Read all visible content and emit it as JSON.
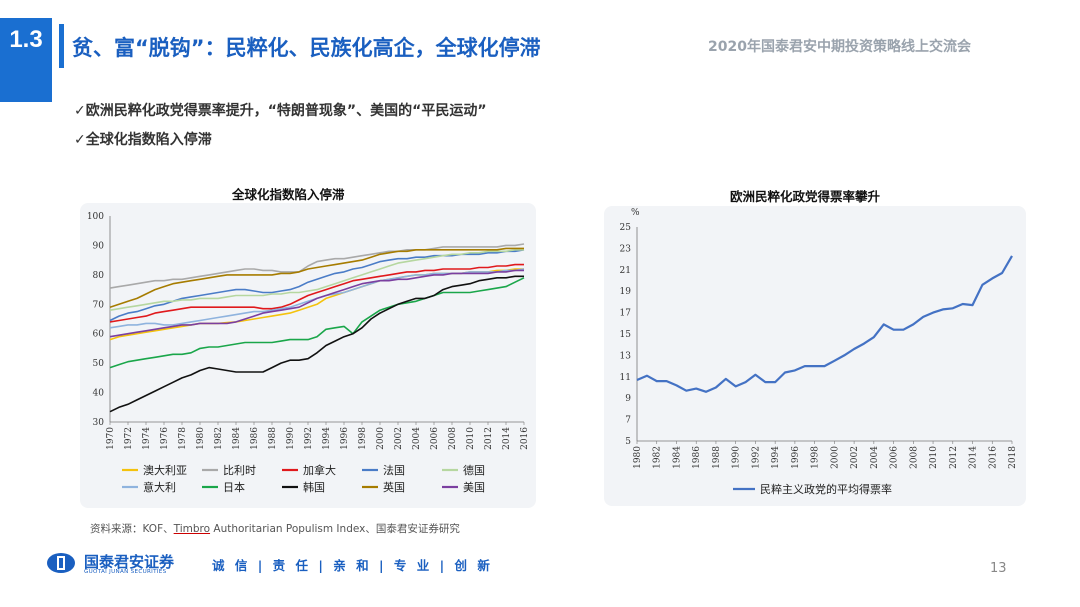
{
  "header": {
    "section_number": "1.3",
    "title": "贫、富“脱钩”：民粹化、民族化高企，全球化停滞",
    "event": "2020年国泰君安中期投资策略线上交流会"
  },
  "bullets": [
    "✓欧洲民粹化政党得票率提升，“特朗普现象”、美国的“平民运动”",
    "✓全球化指数陷入停滞"
  ],
  "chart_data": [
    {
      "type": "line",
      "title": "全球化指数陷入停滞",
      "x": [
        1970,
        1971,
        1972,
        1973,
        1974,
        1975,
        1976,
        1977,
        1978,
        1979,
        1980,
        1981,
        1982,
        1983,
        1984,
        1985,
        1986,
        1987,
        1988,
        1989,
        1990,
        1991,
        1992,
        1993,
        1994,
        1995,
        1996,
        1997,
        1998,
        1999,
        2000,
        2001,
        2002,
        2003,
        2004,
        2005,
        2006,
        2007,
        2008,
        2009,
        2010,
        2011,
        2012,
        2013,
        2014,
        2015,
        2016
      ],
      "x_tick_labels": [
        "1970",
        "1972",
        "1974",
        "1976",
        "1978",
        "1980",
        "1982",
        "1984",
        "1986",
        "1988",
        "1990",
        "1992",
        "1994",
        "1996",
        "1998",
        "2000",
        "2002",
        "2004",
        "2006",
        "2008",
        "2010",
        "2012",
        "2014",
        "2016"
      ],
      "ylim": [
        30,
        100
      ],
      "y_ticks": [
        30,
        40,
        50,
        60,
        70,
        80,
        90,
        100
      ],
      "grid": false,
      "legend_position": "bottom",
      "series": [
        {
          "name": "澳大利亚",
          "color": "#f4c20d",
          "values": [
            58,
            59,
            59.5,
            60,
            60.5,
            61,
            61.5,
            62,
            62.5,
            63,
            63.5,
            63.5,
            63.5,
            63.8,
            64,
            64.5,
            65,
            65.5,
            66,
            66.5,
            67,
            68,
            69,
            70,
            72,
            73,
            74,
            75,
            76,
            77,
            78,
            78.5,
            79,
            79.5,
            80,
            80,
            80.5,
            80.5,
            80.5,
            80.5,
            81,
            81,
            81,
            81.5,
            81.5,
            82,
            82
          ]
        },
        {
          "name": "比利时",
          "color": "#a9a9a9",
          "values": [
            75.5,
            76,
            76.5,
            77,
            77.5,
            78,
            78,
            78.5,
            78.5,
            79,
            79.5,
            80,
            80.5,
            81,
            81.5,
            82,
            82,
            81.5,
            81.5,
            81,
            81,
            81,
            83,
            84.5,
            85,
            85.5,
            85.5,
            86,
            86.5,
            87,
            87.5,
            88,
            88,
            88.5,
            88.5,
            88.5,
            89,
            89.5,
            89.5,
            89.5,
            89.5,
            89.5,
            89.5,
            89.5,
            90,
            90,
            90.5
          ]
        },
        {
          "name": "加拿大",
          "color": "#e0191c",
          "values": [
            64,
            64.5,
            65,
            65.5,
            66,
            67,
            67.5,
            68,
            68.5,
            69,
            69,
            69,
            69,
            69,
            69,
            69,
            69,
            68.5,
            68.5,
            69,
            70,
            71.5,
            73,
            74,
            75,
            76,
            77,
            78,
            78.5,
            79,
            79.5,
            80,
            80.5,
            81,
            81,
            81.5,
            81.5,
            82,
            82,
            82,
            82,
            82.5,
            82.5,
            83,
            83,
            83.5,
            83.5
          ]
        },
        {
          "name": "法国",
          "color": "#4a7cc7",
          "values": [
            64.5,
            66,
            67,
            67.5,
            68.5,
            69.5,
            70,
            71,
            72,
            72.5,
            73,
            73.5,
            74,
            74.5,
            75,
            75,
            74.5,
            74,
            74,
            74.5,
            75,
            76,
            77.5,
            78.5,
            79.5,
            80.5,
            81,
            82,
            82.5,
            83.5,
            84.5,
            85,
            85.5,
            85.5,
            86,
            86,
            86.5,
            86.5,
            86.5,
            87,
            87,
            87,
            87.5,
            87.5,
            88,
            88,
            88.5
          ]
        },
        {
          "name": "德国",
          "color": "#b6d7a0",
          "values": [
            68,
            68.5,
            69,
            69.5,
            70,
            70.5,
            71,
            71,
            71.5,
            71.5,
            72,
            72,
            72,
            72.5,
            73,
            73,
            73,
            73,
            73.5,
            73.5,
            74,
            74,
            74.5,
            75,
            76,
            77,
            78,
            79,
            80,
            81,
            82,
            83,
            84,
            84.5,
            85,
            85.5,
            86,
            86.5,
            87,
            87,
            87.5,
            87.5,
            88,
            88,
            88,
            88.5,
            88.5
          ]
        },
        {
          "name": "意大利",
          "color": "#8fb3de",
          "values": [
            62,
            62.5,
            63,
            63,
            63.5,
            63.5,
            63,
            63,
            63.5,
            64,
            64.5,
            65,
            65.5,
            66,
            66.5,
            67,
            67.5,
            67.5,
            68,
            68.5,
            69,
            70,
            71,
            72,
            73,
            73.5,
            74,
            75,
            76,
            77,
            78,
            78.5,
            79,
            79.5,
            80,
            80,
            80.5,
            80.5,
            80.5,
            80.5,
            81,
            81,
            81,
            81,
            81.5,
            81.5,
            82
          ]
        },
        {
          "name": "日本",
          "color": "#1aa64a",
          "values": [
            48.5,
            49.5,
            50.5,
            51,
            51.5,
            52,
            52.5,
            53,
            53,
            53.5,
            55,
            55.5,
            55.5,
            56,
            56.5,
            57,
            57,
            57,
            57,
            57.5,
            58,
            58,
            58,
            59,
            61.5,
            62,
            62.5,
            60,
            64,
            66,
            68,
            69,
            70,
            70.5,
            71,
            72,
            73,
            74,
            74,
            74,
            74,
            74.5,
            75,
            75.5,
            76,
            77.5,
            79
          ]
        },
        {
          "name": "韩国",
          "color": "#111111",
          "values": [
            33.5,
            35,
            36,
            37.5,
            39,
            40.5,
            42,
            43.5,
            45,
            46,
            47.5,
            48.5,
            48,
            47.5,
            47,
            47,
            47,
            47,
            48.5,
            50,
            51,
            51,
            51.5,
            53.5,
            56,
            57.5,
            59,
            60,
            62,
            65,
            67,
            68.5,
            70,
            71,
            72,
            72,
            73,
            75,
            76,
            76.5,
            77,
            78,
            78.5,
            79,
            79,
            79.5,
            79.5
          ]
        },
        {
          "name": "英国",
          "color": "#a67c00",
          "values": [
            69,
            70,
            71,
            72,
            73.5,
            75,
            76,
            77,
            77.5,
            78,
            78.5,
            79,
            79.5,
            80,
            80,
            80,
            80,
            80,
            80,
            80.5,
            80.5,
            81,
            82,
            82.5,
            83,
            83.5,
            84,
            84.5,
            85,
            86,
            87,
            87.5,
            88,
            88,
            88.5,
            88.5,
            88.5,
            88.5,
            88.5,
            88.5,
            88.5,
            88.5,
            88.5,
            88.5,
            89,
            89,
            89
          ]
        },
        {
          "name": "美国",
          "color": "#7b3fa0",
          "values": [
            59,
            59.5,
            60,
            60.5,
            61,
            61.5,
            62,
            62.5,
            63,
            63,
            63.5,
            63.5,
            63.5,
            63.5,
            64,
            65,
            66,
            67,
            67.5,
            68,
            68.5,
            69,
            70.5,
            72,
            73,
            74,
            75,
            76,
            77,
            77.5,
            78,
            78,
            78.5,
            78.5,
            79,
            79.5,
            80,
            80,
            80.5,
            80.5,
            80.5,
            80.5,
            80.5,
            81,
            81,
            81.5,
            81.5
          ]
        }
      ]
    },
    {
      "type": "line",
      "title": "欧洲民粹化政党得票率攀升",
      "ylabel": "%",
      "x": [
        1980,
        1981,
        1982,
        1983,
        1984,
        1985,
        1986,
        1987,
        1988,
        1989,
        1990,
        1991,
        1992,
        1993,
        1994,
        1995,
        1996,
        1997,
        1998,
        1999,
        2000,
        2001,
        2002,
        2003,
        2004,
        2005,
        2006,
        2007,
        2008,
        2009,
        2010,
        2011,
        2012,
        2013,
        2014,
        2015,
        2016,
        2017,
        2018
      ],
      "x_tick_labels": [
        "1980",
        "1982",
        "1984",
        "1986",
        "1988",
        "1990",
        "1992",
        "1994",
        "1996",
        "1998",
        "2000",
        "2002",
        "2004",
        "2006",
        "2008",
        "2010",
        "2012",
        "2014",
        "2016",
        "2018"
      ],
      "ylim": [
        5,
        25
      ],
      "y_ticks": [
        5,
        7,
        9,
        11,
        13,
        15,
        17,
        19,
        21,
        23,
        25
      ],
      "grid": false,
      "legend_position": "bottom",
      "series": [
        {
          "name": "民粹主义政党的平均得票率",
          "color": "#4472c4",
          "values": [
            10.7,
            11.1,
            10.6,
            10.6,
            10.2,
            9.7,
            9.9,
            9.6,
            10.0,
            10.8,
            10.1,
            10.5,
            11.2,
            10.5,
            10.5,
            11.4,
            11.6,
            12.0,
            12.0,
            12.0,
            12.5,
            13.0,
            13.6,
            14.1,
            14.7,
            15.9,
            15.4,
            15.4,
            15.9,
            16.6,
            17.0,
            17.3,
            17.4,
            17.8,
            17.7,
            19.6,
            20.2,
            20.7,
            22.3
          ]
        }
      ]
    }
  ],
  "source": {
    "prefix": "资料来源：KOF、",
    "underlined": "Timbro",
    "suffix": " Authoritarian Populism Index、国泰君安证券研究"
  },
  "footer": {
    "logo_cn": "国泰君安证券",
    "logo_en": "GUOTAI JUNAN SECURITIES",
    "slogan": "诚 信 | 责 任 | 亲 和 | 专 业 | 创 新",
    "page_number": "13"
  },
  "colors": {
    "brand_blue": "#1a6fd1",
    "title_blue": "#1a5fc0",
    "panel_bg": "#f2f4f7"
  }
}
